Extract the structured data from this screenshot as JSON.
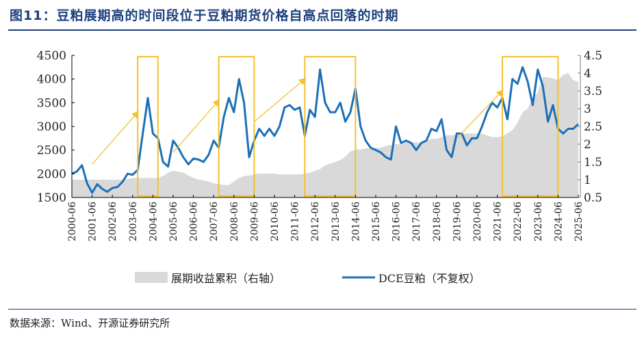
{
  "title": "图11：豆粕展期高的时间段位于豆粕期货价格自高点回落的时期",
  "source": "数据来源：Wind、开源证券研究所",
  "chart_data": {
    "type": "line",
    "title": "图11：豆粕展期高的时间段位于豆粕期货价格自高点回落的时期",
    "left_axis": {
      "ylim": [
        1500,
        4500
      ],
      "ticks": [
        "1500",
        "2000",
        "2500",
        "3000",
        "3500",
        "4000",
        "4500"
      ]
    },
    "right_axis": {
      "ylim": [
        0.5,
        4.5
      ],
      "ticks": [
        "0.5",
        "1",
        "1.5",
        "2",
        "2.5",
        "3",
        "3.5",
        "4",
        "4.5"
      ]
    },
    "x_ticks": [
      "2000-06",
      "2001-06",
      "2002-06",
      "2003-06",
      "2004-06",
      "2005-06",
      "2006-06",
      "2007-06",
      "2008-06",
      "2009-06",
      "2010-06",
      "2011-06",
      "2012-06",
      "2013-06",
      "2014-06",
      "2015-06",
      "2016-06",
      "2017-06",
      "2018-06",
      "2019-06",
      "2020-06",
      "2021-06",
      "2022-06",
      "2023-06",
      "2024-06",
      "2025-06"
    ],
    "x_start": "2000-06",
    "x_step": "quarter",
    "grid": false,
    "legend": "bottom",
    "colors": {
      "price": "#1a6fb8",
      "roll": "#d9d9d9",
      "highlight": "#f2c12e"
    },
    "series": [
      {
        "name": "展期收益累积（右轴）",
        "axis": "right",
        "kind": "area",
        "values": [
          1.0,
          1.0,
          1.0,
          1.0,
          1.0,
          1.0,
          1.0,
          1.0,
          1.0,
          1.0,
          1.0,
          1.02,
          1.05,
          1.05,
          1.05,
          1.05,
          1.05,
          1.05,
          1.1,
          1.2,
          1.25,
          1.23,
          1.2,
          1.12,
          1.05,
          1.0,
          0.98,
          0.95,
          0.9,
          0.88,
          0.85,
          0.85,
          0.95,
          1.05,
          1.1,
          1.12,
          1.15,
          1.17,
          1.17,
          1.17,
          1.17,
          1.15,
          1.15,
          1.15,
          1.15,
          1.15,
          1.17,
          1.2,
          1.25,
          1.3,
          1.4,
          1.45,
          1.5,
          1.55,
          1.65,
          1.8,
          1.85,
          1.85,
          1.88,
          1.88,
          1.9,
          1.9,
          1.95,
          1.98,
          2.0,
          2.0,
          2.05,
          2.05,
          2.05,
          2.05,
          2.1,
          2.15,
          2.15,
          2.2,
          2.25,
          2.25,
          2.28,
          2.3,
          2.3,
          2.3,
          2.3,
          2.3,
          2.25,
          2.2,
          2.2,
          2.22,
          2.3,
          2.4,
          2.6,
          2.9,
          3.0,
          3.3,
          3.45,
          3.9,
          3.88,
          3.85,
          3.8,
          3.95,
          4.0,
          3.8,
          3.75
        ]
      },
      {
        "name": "DCE豆粕（不复权）",
        "axis": "left",
        "kind": "line",
        "values": [
          2000,
          2050,
          2180,
          1800,
          1600,
          1780,
          1680,
          1620,
          1700,
          1720,
          1830,
          2000,
          1980,
          2080,
          2850,
          3600,
          2850,
          2750,
          2250,
          2150,
          2700,
          2550,
          2350,
          2200,
          2320,
          2300,
          2250,
          2400,
          2700,
          2550,
          3200,
          3600,
          3300,
          4000,
          3500,
          2350,
          2700,
          2950,
          2800,
          2950,
          2800,
          3000,
          3400,
          3450,
          3350,
          3400,
          2800,
          3350,
          3200,
          4200,
          3500,
          3300,
          3300,
          3500,
          3100,
          3300,
          3800,
          3000,
          2700,
          2550,
          2500,
          2450,
          2350,
          2300,
          3000,
          2650,
          2700,
          2650,
          2500,
          2650,
          2700,
          2950,
          2900,
          3150,
          2500,
          2350,
          2850,
          2850,
          2600,
          2750,
          2750,
          3000,
          3300,
          3500,
          3400,
          3600,
          3150,
          4000,
          3900,
          4250,
          3950,
          3450,
          4200,
          3850,
          3100,
          3450,
          2950,
          2850,
          2950,
          2950,
          3050
        ]
      }
    ],
    "highlight_periods": [
      [
        "2003-09",
        "2004-09"
      ],
      [
        "2007-09",
        "2009-06"
      ],
      [
        "2011-12",
        "2014-06"
      ],
      [
        "2021-09",
        "2024-06"
      ]
    ],
    "arrows": [
      {
        "from": [
          "2001-06",
          2200
        ],
        "to": [
          "2003-09",
          3300
        ]
      },
      {
        "from": [
          "2005-06",
          2450
        ],
        "to": [
          "2007-09",
          3550
        ]
      },
      {
        "from": [
          "2009-06",
          3100
        ],
        "to": [
          "2011-12",
          4000
        ]
      },
      {
        "from": [
          "2019-06",
          2750
        ],
        "to": [
          "2021-09",
          3750
        ]
      }
    ]
  }
}
